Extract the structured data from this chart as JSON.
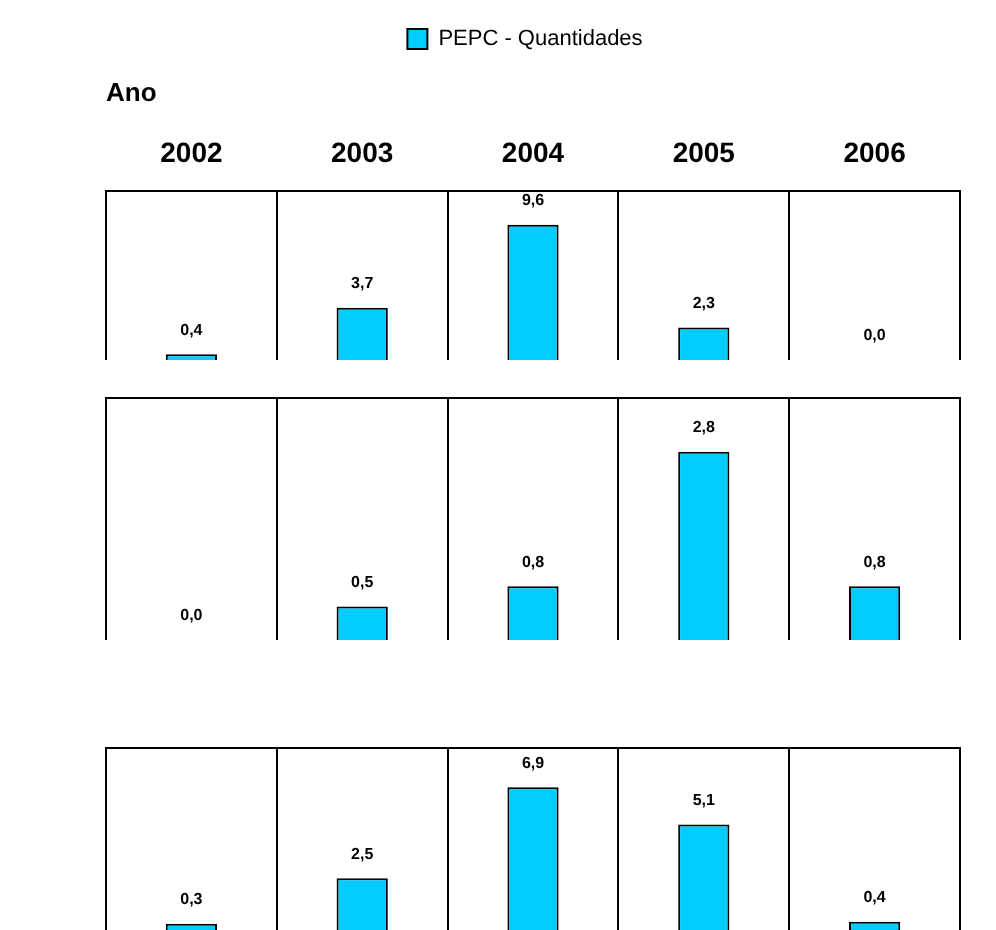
{
  "chart_data": [
    {
      "type": "bar",
      "xlabel": "Ano",
      "categories": [
        "2002",
        "2003",
        "2004",
        "2005",
        "2006"
      ],
      "series": [
        {
          "name": "PEPC - Quantidades",
          "color": "#00ccff",
          "values": [
            0.4,
            3.7,
            9.6,
            2.3,
            0.0
          ],
          "value_labels": [
            "0,4",
            "3,7",
            "9,6",
            "2,3",
            "0,0"
          ]
        }
      ],
      "ylim": [
        0,
        12
      ],
      "tick_labels": "x",
      "grid": "x",
      "legend": "top"
    },
    {
      "type": "bar",
      "categories": [
        "2002",
        "2003",
        "2004",
        "2005",
        "2006"
      ],
      "series": [
        {
          "color": "#00ccff",
          "values": [
            0.0,
            0.5,
            0.8,
            2.8,
            0.8
          ],
          "value_labels": [
            "0,0",
            "0,5",
            "0,8",
            "2,8",
            "0,8"
          ]
        }
      ],
      "ylim": [
        0,
        3.6
      ],
      "tick_labels": false,
      "grid": "x"
    },
    {
      "type": "bar",
      "categories": [
        "2002",
        "2003",
        "2004",
        "2005",
        "2006"
      ],
      "series": [
        {
          "color": "#00ccff",
          "values": [
            0.3,
            2.5,
            6.9,
            5.1,
            0.4
          ],
          "value_labels": [
            "0,3",
            "2,5",
            "6,9",
            "5,1",
            "0,4"
          ]
        }
      ],
      "ylim": [
        0,
        8.8
      ],
      "tick_labels": false,
      "grid": "x"
    }
  ]
}
